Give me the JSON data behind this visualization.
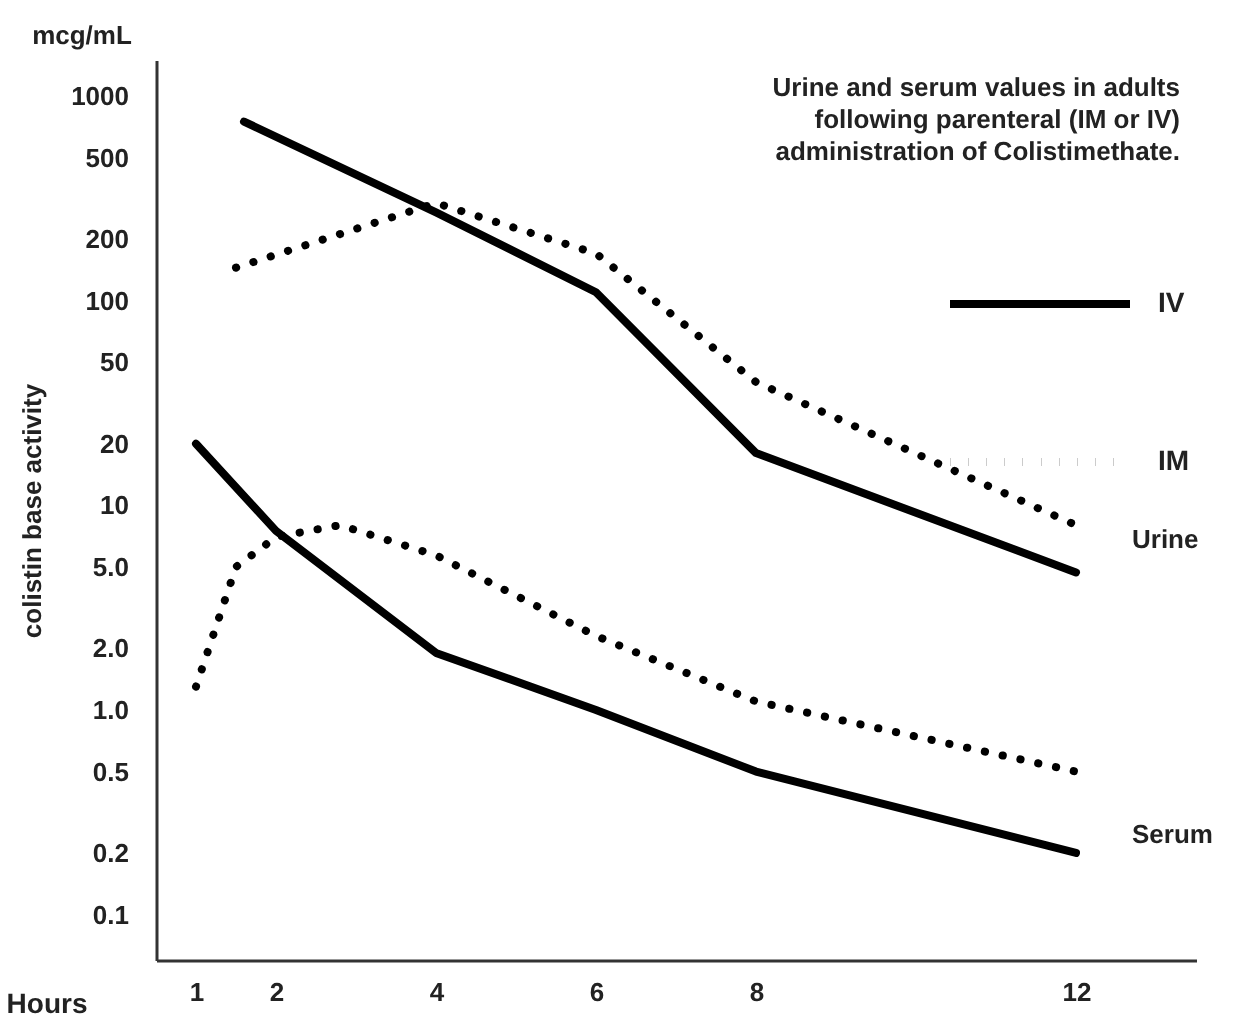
{
  "chart_data": {
    "type": "line",
    "title": "Urine and serum values in adults following parenteral (IM or IV) administration of Colistimethate.",
    "xlabel": "Hours",
    "ylabel": "colistin base activity",
    "annotations": [
      "mcg/mL",
      {
        "text": "Urine",
        "x": 12,
        "y": 5.5
      },
      {
        "text": "Serum",
        "x": 12,
        "y": 0.2
      }
    ],
    "series": [
      {
        "name": "IV",
        "color": "#000000",
        "line_style": "solid",
        "x": [
          1.6,
          4,
          6,
          8,
          12
        ],
        "values": [
          750,
          270,
          110,
          18,
          4.7
        ]
      },
      {
        "name": "IM",
        "color": "#000000",
        "line_style": "dotted",
        "x": [
          1.5,
          4,
          6,
          8,
          12
        ],
        "values": [
          145,
          300,
          170,
          40,
          8
        ]
      },
      {
        "color": "#000000",
        "line_style": "solid",
        "x": [
          1,
          2,
          4,
          6,
          8,
          12
        ],
        "values": [
          20,
          7.5,
          1.9,
          1.0,
          0.5,
          0.2
        ]
      },
      {
        "color": "#000000",
        "line_style": "dotted",
        "x": [
          1,
          1.5,
          2,
          2.8,
          4,
          6,
          8,
          12
        ],
        "values": [
          1.3,
          5,
          7,
          8,
          5.7,
          2.3,
          1.1,
          0.5
        ]
      }
    ],
    "xlim": [
      0.5,
      13.5
    ],
    "xticks": [
      1,
      2,
      4,
      6,
      8,
      12
    ],
    "ylim": [
      0.06,
      1500
    ],
    "yticks": [
      0.1,
      0.2,
      0.5,
      {
        "value": 1,
        "label": "1.0"
      },
      {
        "value": 2,
        "label": "2.0"
      },
      {
        "value": 5,
        "label": "5.0"
      },
      10,
      20,
      50,
      100,
      200,
      500,
      1000
    ],
    "log": "y",
    "legend": "top right"
  }
}
